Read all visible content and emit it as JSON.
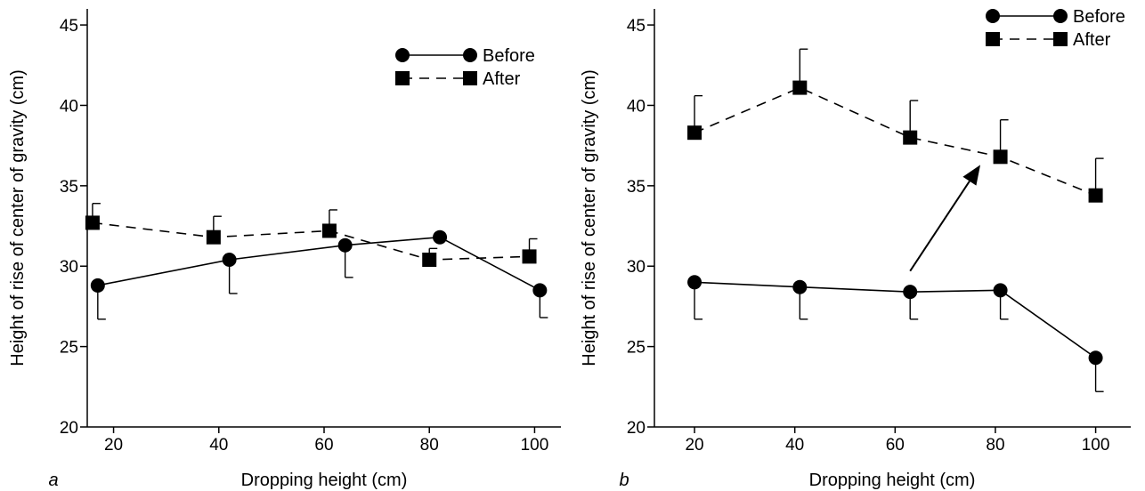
{
  "chart_data": [
    {
      "type": "line",
      "panel_label": "a",
      "xlabel": "Dropping height (cm)",
      "ylabel": "Height of rise of center of gravity (cm)",
      "xlim": [
        15,
        105
      ],
      "ylim": [
        20,
        46
      ],
      "xticks": [
        20,
        40,
        60,
        80,
        100
      ],
      "yticks": [
        20,
        25,
        30,
        35,
        40,
        45
      ],
      "legend_position": "top-right",
      "series": [
        {
          "name": "Before",
          "marker": "circle",
          "line": "solid",
          "points": [
            {
              "x": 17,
              "y": 28.8,
              "err_low": 26.7
            },
            {
              "x": 42,
              "y": 30.4,
              "err_low": 28.3
            },
            {
              "x": 64,
              "y": 31.3,
              "err_low": 29.3
            },
            {
              "x": 82,
              "y": 31.8
            },
            {
              "x": 101,
              "y": 28.5,
              "err_low": 26.8
            }
          ]
        },
        {
          "name": "After",
          "marker": "square",
          "line": "dashed",
          "points": [
            {
              "x": 16,
              "y": 32.7,
              "err_high": 33.9
            },
            {
              "x": 39,
              "y": 31.8,
              "err_high": 33.1
            },
            {
              "x": 61,
              "y": 32.2,
              "err_high": 33.5
            },
            {
              "x": 80,
              "y": 30.4,
              "err_high": 31.1
            },
            {
              "x": 99,
              "y": 30.6,
              "err_high": 31.7
            }
          ]
        }
      ]
    },
    {
      "type": "line",
      "panel_label": "b",
      "xlabel": "Dropping height (cm)",
      "ylabel": "Height of rise of center of gravity (cm)",
      "xlim": [
        12,
        107
      ],
      "ylim": [
        20,
        46
      ],
      "xticks": [
        20,
        40,
        60,
        80,
        100
      ],
      "yticks": [
        20,
        25,
        30,
        35,
        40,
        45
      ],
      "legend_position": "top-right",
      "annotation": {
        "type": "arrow",
        "from": {
          "x": 63,
          "y": 29.7
        },
        "to": {
          "x": 77,
          "y": 36.3
        }
      },
      "series": [
        {
          "name": "Before",
          "marker": "circle",
          "line": "solid",
          "points": [
            {
              "x": 20,
              "y": 29.0,
              "err_low": 26.7
            },
            {
              "x": 41,
              "y": 28.7,
              "err_low": 26.7
            },
            {
              "x": 63,
              "y": 28.4,
              "err_low": 26.7
            },
            {
              "x": 81,
              "y": 28.5,
              "err_low": 26.7
            },
            {
              "x": 100,
              "y": 24.3,
              "err_low": 22.2
            }
          ]
        },
        {
          "name": "After",
          "marker": "square",
          "line": "dashed",
          "points": [
            {
              "x": 20,
              "y": 38.3,
              "err_high": 40.6
            },
            {
              "x": 41,
              "y": 41.1,
              "err_high": 43.5
            },
            {
              "x": 63,
              "y": 38.0,
              "err_high": 40.3
            },
            {
              "x": 81,
              "y": 36.8,
              "err_high": 39.1
            },
            {
              "x": 100,
              "y": 34.4,
              "err_high": 36.7
            }
          ]
        }
      ]
    }
  ]
}
